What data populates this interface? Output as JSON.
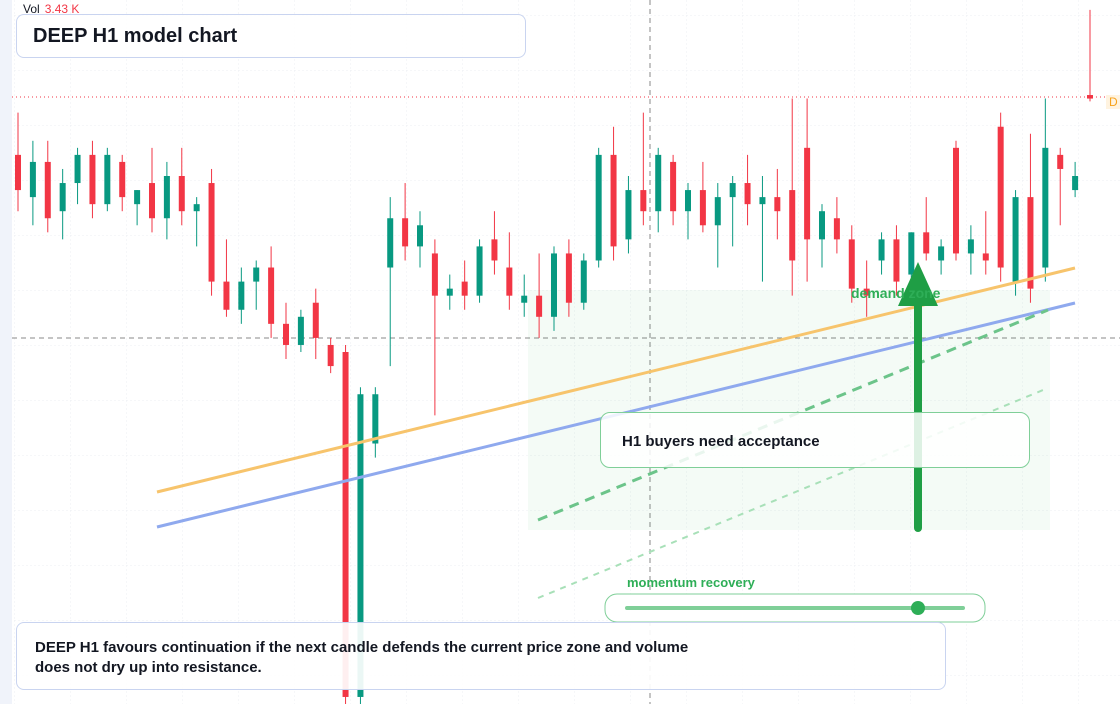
{
  "chart_data": {
    "type": "candlestick",
    "title": "DEEP H1 model chart",
    "volume_label": "Vol",
    "volume_value": "3.43 K",
    "price_label": "D",
    "annotations": {
      "zone": "demand zone",
      "box": "H1 buyers need acceptance",
      "slider": "momentum recovery"
    },
    "note": "DEEP H1 favours continuation if the next candle defends the current price zone and volume does not dry up into resistance.",
    "up_color": "#089981",
    "down_color": "#f23645",
    "ylim": [
      0,
      100
    ],
    "open": [
      78,
      72,
      77,
      70,
      74,
      78,
      71,
      77,
      71,
      74,
      69,
      75,
      70,
      74,
      60,
      56,
      60,
      62,
      54,
      51,
      57,
      51,
      50,
      1,
      37,
      62,
      69,
      65,
      64,
      58,
      60,
      58,
      66,
      62,
      57,
      58,
      55,
      64,
      57,
      63,
      78,
      66,
      73,
      70,
      77,
      70,
      73,
      68,
      72,
      74,
      71,
      72,
      73,
      79,
      66,
      69,
      66,
      59,
      63,
      66,
      61,
      67,
      63,
      79,
      64,
      64,
      82,
      60,
      72,
      62,
      78,
      73,
      86.5
    ],
    "high": [
      84,
      80,
      80,
      76,
      79,
      80,
      79,
      78,
      73,
      79,
      77,
      79,
      72,
      76,
      66,
      62,
      63,
      65,
      57,
      56,
      59,
      52,
      51,
      45,
      45,
      72,
      74,
      70,
      66,
      61,
      63,
      66,
      70,
      67,
      61,
      64,
      65,
      66,
      64,
      79,
      82,
      75,
      84,
      79,
      78,
      74,
      77,
      74,
      75,
      78,
      75,
      76,
      86,
      86,
      71,
      72,
      68,
      63,
      67,
      68,
      67,
      72,
      66,
      80,
      68,
      70,
      84,
      73,
      81,
      86,
      79,
      77,
      98.6
    ],
    "low": [
      70,
      68,
      67,
      66,
      71,
      69,
      70,
      70,
      68,
      67,
      66,
      68,
      65,
      58,
      55,
      54,
      56,
      52,
      49,
      50,
      49,
      47,
      0,
      0,
      35,
      48,
      63,
      62,
      41,
      56,
      56,
      57,
      61,
      56,
      55,
      52,
      53,
      55,
      56,
      62,
      63,
      64,
      68,
      67,
      68,
      66,
      67,
      62,
      65,
      68,
      60,
      66,
      58,
      60,
      62,
      64,
      57,
      55,
      61,
      58,
      60,
      63,
      61,
      63,
      61,
      61,
      60,
      58,
      57,
      60,
      68,
      72,
      85.6
    ],
    "close": [
      73,
      77,
      69,
      74,
      78,
      71,
      78,
      72,
      73,
      69,
      75,
      70,
      71,
      60,
      56,
      60,
      62,
      54,
      51,
      55,
      52,
      48,
      1,
      44,
      44,
      69,
      65,
      68,
      58,
      59,
      58,
      65,
      63,
      58,
      58,
      55,
      64,
      57,
      63,
      78,
      65,
      73,
      70,
      78,
      70,
      73,
      68,
      72,
      74,
      71,
      72,
      70,
      63,
      66,
      70,
      66,
      59,
      58,
      66,
      60,
      67,
      64,
      65,
      64,
      66,
      63,
      62,
      72,
      59,
      79,
      76,
      75,
      86
    ]
  }
}
